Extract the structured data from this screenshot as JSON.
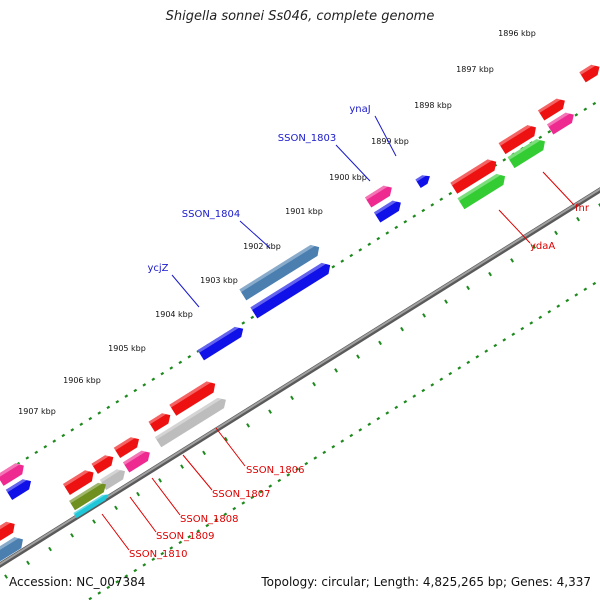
{
  "title": "Shigella sonnei Ss046, complete genome",
  "accession": "Accession: NC_007384",
  "summary": "Topology: circular; Length: 4,825,265 bp; Genes: 4,337",
  "kbp_ticks": [
    "1896 kbp",
    "1897 kbp",
    "1898 kbp",
    "1899 kbp",
    "1900 kbp",
    "1901 kbp",
    "1902 kbp",
    "1903 kbp",
    "1904 kbp",
    "1905 kbp",
    "1906 kbp",
    "1907 kbp"
  ],
  "gene_labels": [
    {
      "text": "ynaJ",
      "color": "#1a1acc"
    },
    {
      "text": "SSON_1803",
      "color": "#1a1acc"
    },
    {
      "text": "SSON_1804",
      "color": "#1a1acc"
    },
    {
      "text": "ycjZ",
      "color": "#1a1acc"
    },
    {
      "text": "fnr",
      "color": "#dd0000"
    },
    {
      "text": "ydaA",
      "color": "#dd0000"
    },
    {
      "text": "SSON_1806",
      "color": "#dd0000"
    },
    {
      "text": "SSON_1807",
      "color": "#dd0000"
    },
    {
      "text": "SSON_1808",
      "color": "#dd0000"
    },
    {
      "text": "SSON_1809",
      "color": "#dd0000"
    },
    {
      "text": "SSON_1810",
      "color": "#dd0000"
    }
  ],
  "colors": {
    "backbone": "#8c8c8c",
    "tick_dots": "#1d8a1d",
    "forward_blue": "#1010e8",
    "steel_blue": "#4a7fb0",
    "red": "#ee1111",
    "pink": "#ee2a90",
    "green": "#33cc33",
    "gray": "#bdbdbd",
    "olive": "#6f8f1f",
    "cyan": "#1ec8d8"
  }
}
